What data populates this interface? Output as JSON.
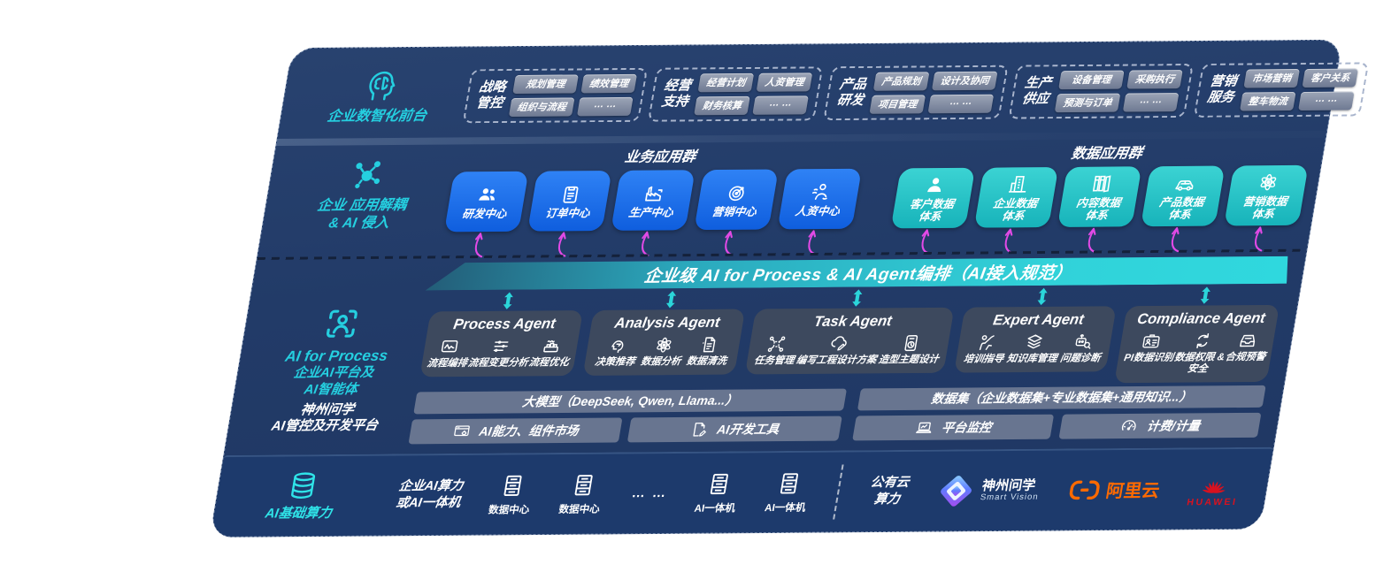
{
  "colors": {
    "panel_navy": "#223b68",
    "accent_cyan": "#25cfe0",
    "magenta_arrow": "#e24ae6",
    "blue_tile": "#1a6fe8",
    "teal_tile": "#27c5c7",
    "banner_teal": "#2fd4da",
    "card_slate": "#3f4a5e",
    "pill_gray": "#8791a5",
    "alicloud_orange": "#ff6a00",
    "huawei_red": "#d8121f"
  },
  "front_office": {
    "icon": "brain-icon",
    "label": "企业数智化前台",
    "groups": [
      {
        "title": "战略管控",
        "items": [
          "规划管理",
          "绩效管理",
          "组织与流程",
          "… …"
        ]
      },
      {
        "title": "经营支持",
        "items": [
          "经营计划",
          "人资管理",
          "财务核算",
          "… …"
        ]
      },
      {
        "title": "产品研发",
        "items": [
          "产品规划",
          "设计及协同",
          "项目管理",
          "… …"
        ]
      },
      {
        "title": "生产供应",
        "items": [
          "设备管理",
          "采购执行",
          "预测与订单",
          "… …"
        ]
      },
      {
        "title": "营销服务",
        "items": [
          "市场营销",
          "客户关系",
          "整车物流",
          "… …"
        ]
      }
    ]
  },
  "app_layer": {
    "icon": "molecule-icon",
    "label_lines": [
      "企业 应用解耦",
      "& AI 侵入"
    ],
    "business_group": {
      "title": "业务应用群",
      "tiles": [
        {
          "icon": "team-icon",
          "label": "研发中心"
        },
        {
          "icon": "clipboard-icon",
          "label": "订单中心"
        },
        {
          "icon": "factory-icon",
          "label": "生产中心"
        },
        {
          "icon": "target-icon",
          "label": "营销中心"
        },
        {
          "icon": "hr-icon",
          "label": "人资中心"
        }
      ]
    },
    "data_group": {
      "title": "数据应用群",
      "tiles": [
        {
          "icon": "person-icon",
          "label": "客户数据体系"
        },
        {
          "icon": "building-icon",
          "label": "企业数据体系"
        },
        {
          "icon": "books-icon",
          "label": "内容数据体系"
        },
        {
          "icon": "car-icon",
          "label": "产品数据体系"
        },
        {
          "icon": "atom-icon",
          "label": "营销数据体系"
        }
      ]
    }
  },
  "banner": {
    "text": "企业级 AI for Process & AI Agent编排（AI接入规范）"
  },
  "agent_layer": {
    "icon": "scan-person-icon",
    "label_lines": [
      "AI for Process",
      "企业AI平台及",
      "AI智能体"
    ],
    "agents": [
      {
        "title": "Process Agent",
        "items": [
          {
            "icon": "workflow-icon",
            "label": "流程编排"
          },
          {
            "icon": "sliders-icon",
            "label": "流程变更分析"
          },
          {
            "icon": "machine-icon",
            "label": "流程优化"
          }
        ]
      },
      {
        "title": "Analysis Agent",
        "items": [
          {
            "icon": "decision-icon",
            "label": "决策推荐"
          },
          {
            "icon": "atom-icon",
            "label": "数据分析"
          },
          {
            "icon": "doc-clean-icon",
            "label": "数据清洗"
          }
        ]
      },
      {
        "title": "Task Agent",
        "items": [
          {
            "icon": "task-nodes-icon",
            "label": "任务管理"
          },
          {
            "icon": "cloud-edit-icon",
            "label": "编写工程设计方案"
          },
          {
            "icon": "tablet-design-icon",
            "label": "造型主题设计"
          }
        ]
      },
      {
        "title": "Expert Agent",
        "items": [
          {
            "icon": "training-icon",
            "label": "培训指导"
          },
          {
            "icon": "layers-icon",
            "label": "知识库管理"
          },
          {
            "icon": "diagnose-icon",
            "label": "问题诊断"
          }
        ]
      },
      {
        "title": "Compliance Agent",
        "items": [
          {
            "icon": "idcard-icon",
            "label": "PI数据识别"
          },
          {
            "icon": "datalock-icon",
            "label": "数据权限 &\n安全"
          },
          {
            "icon": "alert-tray-icon",
            "label": "合规预警"
          }
        ]
      }
    ]
  },
  "platform_layer": {
    "label_lines": [
      "神州问学",
      "AI管控及开发平台"
    ],
    "model_bar": "大模型（DeepSeek, Qwen, Llama...）",
    "left_tools": [
      {
        "icon": "market-icon",
        "label": "AI能力、组件市场"
      },
      {
        "icon": "devtools-icon",
        "label": "AI开发工具"
      }
    ],
    "dataset_bar": "数据集（企业数据集+专业数据集+通用知识...）",
    "right_tools": [
      {
        "icon": "laptop-icon",
        "label": "平台监控"
      },
      {
        "icon": "gauge-icon",
        "label": "计费/计量"
      }
    ]
  },
  "infra_layer": {
    "icon": "database-icon",
    "label": "AI基础算力",
    "compute_label_lines": [
      "企业AI算力",
      "或AI一体机"
    ],
    "nodes": [
      {
        "icon": "server-icon",
        "label": "数据中心"
      },
      {
        "icon": "server-icon",
        "label": "数据中心"
      },
      {
        "dots": "… …"
      },
      {
        "icon": "server-icon",
        "label": "AI一体机"
      },
      {
        "icon": "server-icon",
        "label": "AI一体机"
      }
    ],
    "cloud_label_lines": [
      "公有云",
      "算力"
    ],
    "partners": [
      {
        "logo": "smartvision-logo",
        "name": "神州问学",
        "sub": "Smart Vision"
      },
      {
        "logo": "alicloud-logo",
        "name": "阿里云"
      },
      {
        "logo": "huawei-logo",
        "name": "HUAWEI"
      }
    ]
  }
}
